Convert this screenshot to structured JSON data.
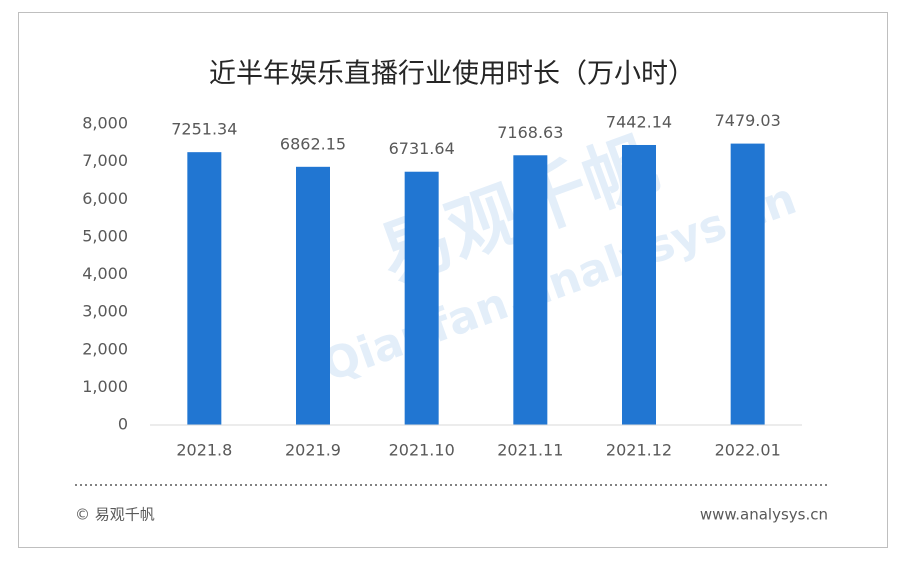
{
  "chart_data": {
    "type": "bar",
    "title": "近半年娱乐直播行业使用时长（万小时）",
    "categories": [
      "2021.8",
      "2021.9",
      "2021.10",
      "2021.11",
      "2021.12",
      "2022.01"
    ],
    "values": [
      7251.34,
      6862.15,
      6731.64,
      7168.63,
      7442.14,
      7479.03
    ],
    "color": "#2176d2",
    "ylim": [
      0,
      8000
    ],
    "yticks": [
      0,
      {
        "value": 1000,
        "label": "1,000"
      },
      {
        "value": 2000,
        "label": "2,000"
      },
      {
        "value": 3000,
        "label": "3,000"
      },
      {
        "value": 4000,
        "label": "4,000"
      },
      {
        "value": 5000,
        "label": "5,000"
      },
      {
        "value": 6000,
        "label": "6,000"
      },
      {
        "value": 7000,
        "label": "7,000"
      },
      {
        "value": 8000,
        "label": "8,000"
      }
    ],
    "grid": false,
    "watermark": [
      "易观千帆",
      "Qianfan.analysys.cn"
    ]
  },
  "footer": {
    "copyright": "© 易观千帆",
    "url": "www.analysys.cn"
  }
}
